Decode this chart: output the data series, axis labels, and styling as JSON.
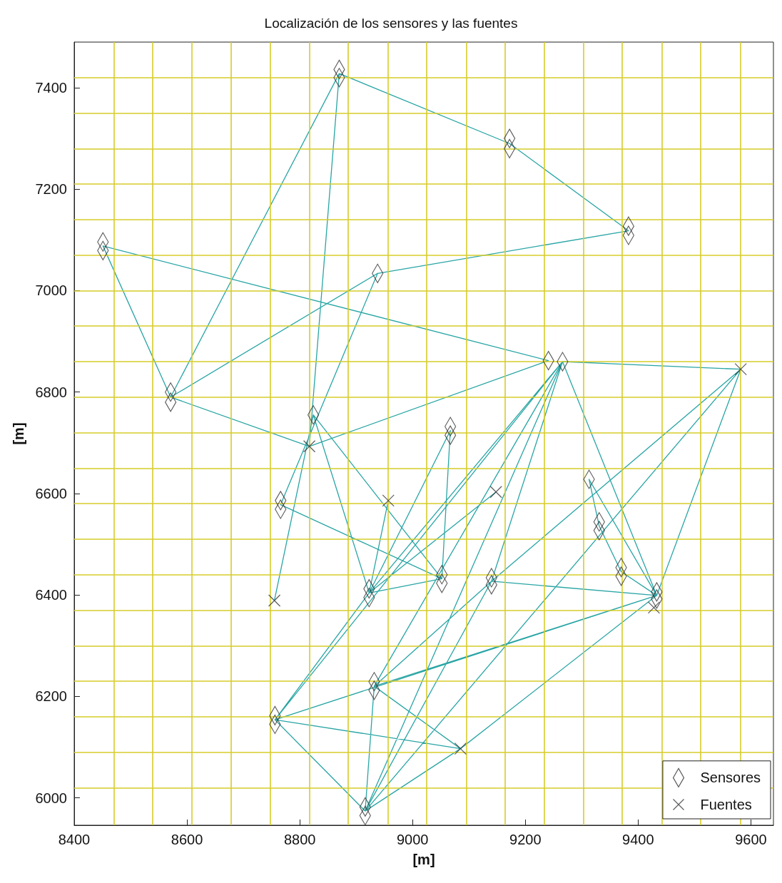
{
  "chart_data": {
    "type": "scatter",
    "title": "Localización de los sensores y las fuentes",
    "xlabel": "[m]",
    "ylabel": "[m]",
    "xlim": [
      8400,
      9640
    ],
    "ylim": [
      5946,
      7490
    ],
    "xticks": [
      8400,
      8600,
      8800,
      9000,
      9200,
      9400,
      9600
    ],
    "yticks": [
      6000,
      6200,
      6400,
      6600,
      6800,
      7000,
      7200,
      7400
    ],
    "legend": "bottom right",
    "series": [
      {
        "type": "line",
        "color": "#2aa5a5",
        "marker": "none",
        "line_style": "solid",
        "x": [
          8451,
          9241,
          null,
          8451,
          8571,
          null,
          8571,
          8870,
          null,
          8571,
          8938,
          null,
          8938,
          9383,
          null,
          8870,
          9172,
          null,
          9172,
          9383,
          null,
          8571,
          8817,
          null,
          8817,
          9241,
          null,
          8870,
          8817,
          null,
          8938,
          8766,
          null,
          8766,
          9052,
          null,
          8755,
          8824,
          null,
          8824,
          8923,
          null,
          8824,
          9052,
          null,
          8957,
          8923,
          null,
          8923,
          9067,
          null,
          9067,
          9052,
          null,
          8923,
          9052,
          null,
          8923,
          9148,
          null,
          8923,
          9266,
          null,
          9266,
          8756,
          null,
          9266,
          8916,
          null,
          9266,
          8932,
          null,
          9266,
          9140,
          null,
          9266,
          9582,
          null,
          9266,
          9433,
          null,
          9582,
          9433,
          null,
          9582,
          9140,
          null,
          9582,
          8916,
          null,
          9313,
          9331,
          null,
          9331,
          9370,
          null,
          9370,
          9433,
          null,
          9313,
          9433,
          null,
          9140,
          9433,
          null,
          8756,
          9433,
          null,
          8932,
          9433,
          null,
          8756,
          9085,
          null,
          8932,
          9085,
          null,
          8916,
          9085,
          null,
          9085,
          9433,
          null,
          8756,
          8916,
          null,
          8932,
          8916,
          null,
          8756,
          8923,
          null,
          8916,
          9140,
          null,
          8932,
          9140
        ],
        "values": [
          7088,
          6862,
          null,
          7088,
          6790,
          null,
          6790,
          7428,
          null,
          6790,
          7034,
          null,
          7034,
          7118,
          null,
          7428,
          7290,
          null,
          7290,
          7118,
          null,
          6790,
          6693,
          null,
          6693,
          6862,
          null,
          7428,
          6693,
          null,
          7034,
          6578,
          null,
          6578,
          6432,
          null,
          6389,
          6755,
          null,
          6755,
          6404,
          null,
          6755,
          6432,
          null,
          6586,
          6404,
          null,
          6404,
          6724,
          null,
          6724,
          6432,
          null,
          6404,
          6432,
          null,
          6404,
          6603,
          null,
          6404,
          6860,
          null,
          6860,
          6154,
          null,
          6860,
          5974,
          null,
          6860,
          6220,
          null,
          6860,
          6427,
          null,
          6860,
          6845,
          null,
          6860,
          6399,
          null,
          6845,
          6399,
          null,
          6845,
          6427,
          null,
          6845,
          5974,
          null,
          6628,
          6536,
          null,
          6536,
          6446,
          null,
          6446,
          6399,
          null,
          6628,
          6399,
          null,
          6427,
          6399,
          null,
          6154,
          6399,
          null,
          6220,
          6399,
          null,
          6154,
          6097,
          null,
          6220,
          6097,
          null,
          5974,
          6097,
          null,
          6097,
          6399,
          null,
          6154,
          5974,
          null,
          6220,
          5974,
          null,
          6154,
          6404,
          null,
          5974,
          6427,
          null,
          6220,
          6427
        ]
      },
      {
        "type": "scatter",
        "name": "Sensores",
        "color": "#333333",
        "marker": "diamond",
        "x": [
          8870,
          8870,
          8451,
          8451,
          8571,
          8571,
          9172,
          9172,
          9383,
          9383,
          8766,
          8766,
          8923,
          8923,
          8932,
          8932,
          8756,
          8756,
          8916,
          8916,
          9067,
          9067,
          9052,
          9052,
          9140,
          9140,
          9331,
          9331,
          9370,
          9370,
          9433,
          9433,
          8938,
          9241,
          9266,
          8824,
          9313
        ],
        "values": [
          7436,
          7420,
          7096,
          7079,
          6800,
          6780,
          7300,
          7280,
          7127,
          7109,
          6586,
          6569,
          6412,
          6395,
          6229,
          6212,
          6162,
          6145,
          5982,
          5965,
          6732,
          6715,
          6440,
          6423,
          6434,
          6420,
          6544,
          6527,
          6454,
          6437,
          6406,
          6392,
          7034,
          6862,
          6860,
          6755,
          6628
        ]
      },
      {
        "type": "scatter",
        "name": "Fuentes",
        "color": "#333333",
        "marker": "cross",
        "x": [
          8817,
          8957,
          8755,
          9148,
          9582,
          9428,
          9085
        ],
        "values": [
          6693,
          6586,
          6389,
          6603,
          6845,
          6375,
          6097
        ]
      }
    ],
    "ref_lines": [
      {
        "axis": "x",
        "value": 8470,
        "color": "#d6cc2a"
      },
      {
        "axis": "x",
        "value": 8539,
        "color": "#d6cc2a"
      },
      {
        "axis": "x",
        "value": 8609,
        "color": "#d6cc2a"
      },
      {
        "axis": "x",
        "value": 8678,
        "color": "#d6cc2a"
      },
      {
        "axis": "x",
        "value": 8748,
        "color": "#d6cc2a"
      },
      {
        "axis": "x",
        "value": 8817,
        "color": "#d6cc2a"
      },
      {
        "axis": "x",
        "value": 8886,
        "color": "#d6cc2a"
      },
      {
        "axis": "x",
        "value": 8956,
        "color": "#d6cc2a"
      },
      {
        "axis": "x",
        "value": 9025,
        "color": "#d6cc2a"
      },
      {
        "axis": "x",
        "value": 9095,
        "color": "#d6cc2a"
      },
      {
        "axis": "x",
        "value": 9164,
        "color": "#d6cc2a"
      },
      {
        "axis": "x",
        "value": 9234,
        "color": "#d6cc2a"
      },
      {
        "axis": "x",
        "value": 9303,
        "color": "#d6cc2a"
      },
      {
        "axis": "x",
        "value": 9372,
        "color": "#d6cc2a"
      },
      {
        "axis": "x",
        "value": 9442,
        "color": "#d6cc2a"
      },
      {
        "axis": "x",
        "value": 9511,
        "color": "#d6cc2a"
      },
      {
        "axis": "x",
        "value": 9581,
        "color": "#d6cc2a"
      },
      {
        "axis": "y",
        "value": 7420,
        "color": "#d6cc2a"
      },
      {
        "axis": "y",
        "value": 7350,
        "color": "#d6cc2a"
      },
      {
        "axis": "y",
        "value": 7280,
        "color": "#d6cc2a"
      },
      {
        "axis": "y",
        "value": 7210,
        "color": "#d6cc2a"
      },
      {
        "axis": "y",
        "value": 7140,
        "color": "#d6cc2a"
      },
      {
        "axis": "y",
        "value": 7070,
        "color": "#d6cc2a"
      },
      {
        "axis": "y",
        "value": 7000,
        "color": "#d6cc2a"
      },
      {
        "axis": "y",
        "value": 6930,
        "color": "#d6cc2a"
      },
      {
        "axis": "y",
        "value": 6860,
        "color": "#d6cc2a"
      },
      {
        "axis": "y",
        "value": 6790,
        "color": "#d6cc2a"
      },
      {
        "axis": "y",
        "value": 6720,
        "color": "#d6cc2a"
      },
      {
        "axis": "y",
        "value": 6650,
        "color": "#d6cc2a"
      },
      {
        "axis": "y",
        "value": 6580,
        "color": "#d6cc2a"
      },
      {
        "axis": "y",
        "value": 6510,
        "color": "#d6cc2a"
      },
      {
        "axis": "y",
        "value": 6440,
        "color": "#d6cc2a"
      },
      {
        "axis": "y",
        "value": 6370,
        "color": "#d6cc2a"
      },
      {
        "axis": "y",
        "value": 6300,
        "color": "#d6cc2a"
      },
      {
        "axis": "y",
        "value": 6230,
        "color": "#d6cc2a"
      },
      {
        "axis": "y",
        "value": 6160,
        "color": "#d6cc2a"
      },
      {
        "axis": "y",
        "value": 6090,
        "color": "#d6cc2a"
      },
      {
        "axis": "y",
        "value": 6020,
        "color": "#d6cc2a"
      }
    ]
  }
}
